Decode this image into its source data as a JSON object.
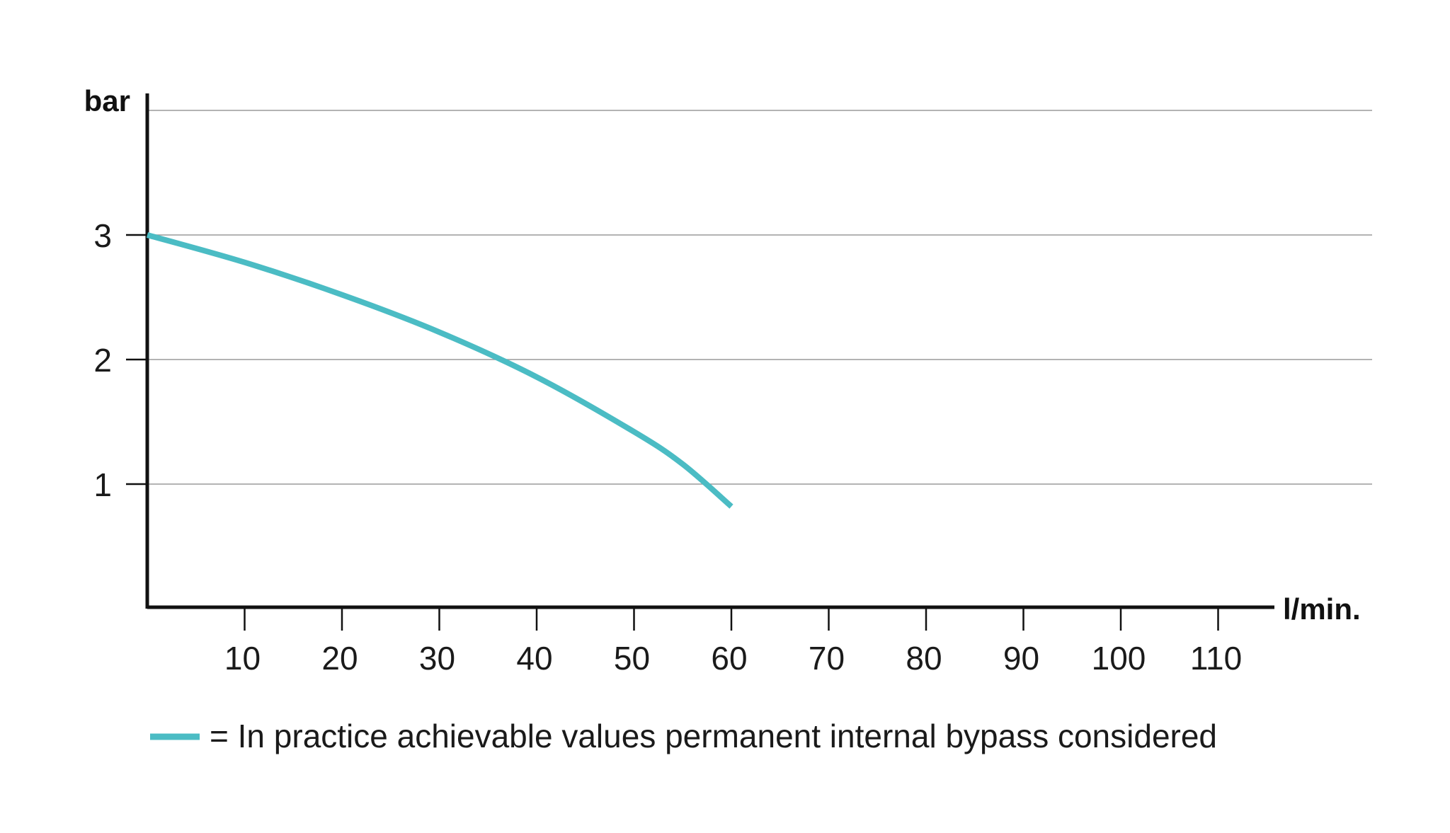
{
  "chart_data": {
    "type": "line",
    "title": "",
    "xlabel": "l/min.",
    "ylabel": "bar",
    "xlim": [
      0,
      120
    ],
    "ylim": [
      0,
      4
    ],
    "x_ticks": [
      10,
      20,
      30,
      40,
      50,
      60,
      70,
      80,
      90,
      100,
      110
    ],
    "y_ticks": [
      1,
      2,
      3
    ],
    "grid": "horizontal",
    "series": [
      {
        "legend_label": "= In practice achievable values permanent internal bypass considered",
        "color": "#4bbcc4",
        "points": [
          {
            "x": 0,
            "y": 3.0
          },
          {
            "x": 10,
            "y": 2.78
          },
          {
            "x": 20,
            "y": 2.52
          },
          {
            "x": 30,
            "y": 2.22
          },
          {
            "x": 40,
            "y": 1.86
          },
          {
            "x": 50,
            "y": 1.42
          },
          {
            "x": 55,
            "y": 1.16
          },
          {
            "x": 60,
            "y": 0.82
          }
        ]
      }
    ],
    "legend_position": "bottom-left"
  },
  "colors": {
    "axis": "#111111",
    "grid": "#9a9a9a",
    "series": "#4bbcc4"
  }
}
